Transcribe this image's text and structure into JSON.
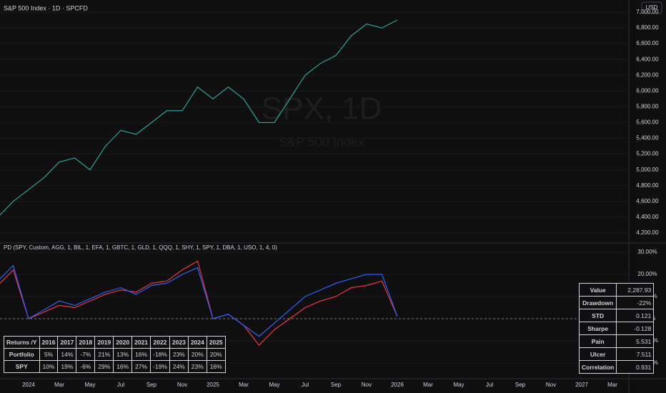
{
  "chart_data": [
    {
      "type": "line",
      "title": "S&P 500 Index · 1D · SPCFD",
      "currency": "USD",
      "watermark": "SPX, 1D",
      "watermark_subtitle": "S&P 500 Index",
      "color": "#26a69a",
      "categories": [
        null,
        null,
        "2024",
        null,
        "Mar",
        null,
        "May",
        null,
        "Jul",
        null,
        "Sep",
        null,
        "Nov",
        null,
        "2025",
        null,
        "Mar",
        null,
        "May",
        null,
        "Jul",
        null,
        "Sep",
        null,
        "Nov",
        null,
        "2026",
        null,
        "Mar",
        null,
        "May",
        null,
        "Jul",
        null,
        "Sep",
        null,
        "Nov",
        null,
        "2027",
        null,
        "Mar"
      ],
      "values": [
        4400,
        4600,
        4750,
        4900,
        5100,
        5150,
        5000,
        5300,
        5500,
        5450,
        5600,
        5750,
        5750,
        6050,
        5900,
        6050,
        5900,
        5600,
        5600,
        5900,
        6200,
        6350,
        6450,
        6700,
        6850,
        6800,
        6900,
        null,
        null,
        null,
        null,
        null,
        null,
        null,
        null,
        null,
        null,
        null,
        null,
        null,
        null
      ],
      "ylim": [
        4073,
        7154
      ],
      "yticks": [
        {
          "value": 4200,
          "label": "4,200.00"
        },
        {
          "value": 4400,
          "label": "4,400.00"
        },
        {
          "value": 4600,
          "label": "4,600.00"
        },
        {
          "value": 4800,
          "label": "4,800.00"
        },
        {
          "value": 5000,
          "label": "5,000.00"
        },
        {
          "value": 5200,
          "label": "5,200.00"
        },
        {
          "value": 5400,
          "label": "5,400.00"
        },
        {
          "value": 5600,
          "label": "5,600.00"
        },
        {
          "value": 5800,
          "label": "5,800.00"
        },
        {
          "value": 6000,
          "label": "6,000.00"
        },
        {
          "value": 6200,
          "label": "6,200.00"
        },
        {
          "value": 6400,
          "label": "6,400.00"
        },
        {
          "value": 6600,
          "label": "6,600.00"
        },
        {
          "value": 6800,
          "label": "6,800.00"
        },
        {
          "value": 7000,
          "label": "7,000.00"
        }
      ]
    },
    {
      "type": "line",
      "title": "PD (SPY, Custom, AGG, 1, BIL, 1, EFA, 1, GBTC, 1, GLD, 1, QQQ, 1, SHY, 1, SPY, 1, DBA, 1, USO, 1, 4, 0)",
      "series": [
        {
          "color": "#f23645",
          "values": [
            15,
            22,
            0,
            3,
            6,
            5,
            8,
            11,
            13,
            12,
            16,
            17,
            22,
            26,
            0,
            2,
            -3,
            -12,
            -5,
            0,
            5,
            8,
            10,
            14,
            15,
            17,
            1,
            null,
            null,
            null,
            null,
            null,
            null,
            null,
            null,
            null,
            null,
            null,
            null,
            null,
            null
          ]
        },
        {
          "color": "#2962ff",
          "values": [
            17,
            24,
            0,
            4,
            8,
            6,
            9,
            12,
            14,
            11,
            15,
            16,
            20,
            23,
            0,
            2,
            -3,
            -8,
            -2,
            4,
            10,
            13,
            16,
            18,
            20,
            20,
            1,
            null,
            null,
            null,
            null,
            null,
            null,
            null,
            null,
            null,
            null,
            null,
            null,
            null,
            null
          ]
        }
      ],
      "ylim": [
        -23.9,
        34.2
      ],
      "yticks": [
        {
          "value": 30,
          "label": "30.00%"
        },
        {
          "value": 20,
          "label": "20.00%"
        },
        {
          "value": 10,
          "label": "10.00%"
        },
        {
          "value": 0,
          "label": "0.00%"
        },
        {
          "value": -10,
          "label": "-10.00%"
        },
        {
          "value": -20,
          "label": "-20.00%"
        }
      ]
    }
  ],
  "returns_table": {
    "header": [
      "Returns /Y",
      "2016",
      "2017",
      "2018",
      "2019",
      "2020",
      "2021",
      "2022",
      "2023",
      "2024",
      "2025"
    ],
    "rows": [
      [
        "Portfolio",
        "5%",
        "14%",
        "-7%",
        "21%",
        "13%",
        "16%",
        "-18%",
        "23%",
        "20%",
        "20%"
      ],
      [
        "SPY",
        "10%",
        "19%",
        "-6%",
        "29%",
        "16%",
        "27%",
        "-19%",
        "24%",
        "23%",
        "16%"
      ]
    ]
  },
  "stats_table": {
    "rows": [
      [
        "Value",
        "2,287.93"
      ],
      [
        "Drawdown",
        "-22%"
      ],
      [
        "STD",
        "0.121"
      ],
      [
        "Sharpe",
        "-0.128"
      ],
      [
        "Pain",
        "5.531"
      ],
      [
        "Ulcer",
        "7.511"
      ],
      [
        "Correlation",
        "0.931"
      ]
    ]
  }
}
